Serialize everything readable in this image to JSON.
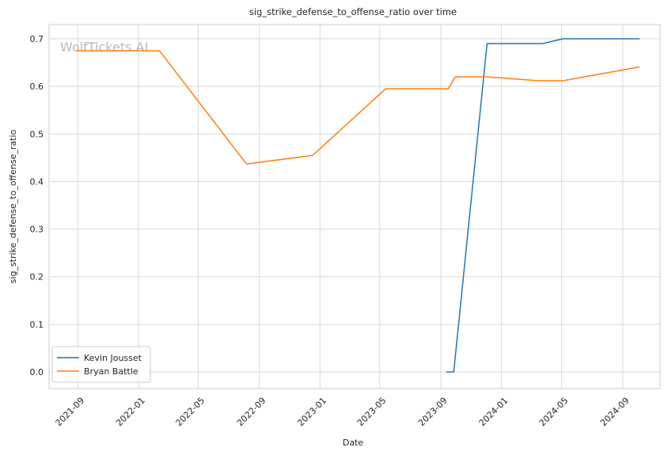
{
  "chart_data": {
    "type": "line",
    "title": "sig_strike_defense_to_offense_ratio over time",
    "xlabel": "Date",
    "ylabel": "sig_strike_defense_to_offense_ratio",
    "watermark": "WolfTickets.AI",
    "ylim": [
      -0.035,
      0.73
    ],
    "xlim": [
      "2021-07-05",
      "2024-11-15"
    ],
    "y_ticks": [
      0.0,
      0.1,
      0.2,
      0.3,
      0.4,
      0.5,
      0.6,
      0.7
    ],
    "y_tick_labels": [
      "0.0",
      "0.1",
      "0.2",
      "0.3",
      "0.4",
      "0.5",
      "0.6",
      "0.7"
    ],
    "x_ticks": [
      "2021-09-01",
      "2022-01-01",
      "2022-05-01",
      "2022-09-01",
      "2023-01-01",
      "2023-05-01",
      "2023-09-01",
      "2024-01-01",
      "2024-05-01",
      "2024-09-01"
    ],
    "x_tick_labels": [
      "2021-09",
      "2022-01",
      "2022-05",
      "2022-09",
      "2023-01",
      "2023-05",
      "2023-09",
      "2024-01",
      "2024-05",
      "2024-09"
    ],
    "grid": true,
    "legend_position": "lower-left",
    "series": [
      {
        "name": "Kevin Jousset",
        "color": "#1f77b4",
        "points": [
          {
            "x": "2023-09-12",
            "y": 0.0
          },
          {
            "x": "2023-09-27",
            "y": 0.0
          },
          {
            "x": "2023-12-03",
            "y": 0.69
          },
          {
            "x": "2024-03-23",
            "y": 0.69
          },
          {
            "x": "2024-05-04",
            "y": 0.7
          },
          {
            "x": "2024-10-05",
            "y": 0.7
          }
        ]
      },
      {
        "name": "Bryan Battle",
        "color": "#ff7f0e",
        "points": [
          {
            "x": "2021-08-28",
            "y": 0.675
          },
          {
            "x": "2022-02-12",
            "y": 0.675
          },
          {
            "x": "2022-08-06",
            "y": 0.437
          },
          {
            "x": "2022-12-17",
            "y": 0.455
          },
          {
            "x": "2023-05-13",
            "y": 0.595
          },
          {
            "x": "2023-09-16",
            "y": 0.595
          },
          {
            "x": "2023-09-30",
            "y": 0.62
          },
          {
            "x": "2023-12-02",
            "y": 0.62
          },
          {
            "x": "2024-03-16",
            "y": 0.612
          },
          {
            "x": "2024-05-04",
            "y": 0.612
          },
          {
            "x": "2024-10-05",
            "y": 0.641
          }
        ]
      }
    ]
  }
}
